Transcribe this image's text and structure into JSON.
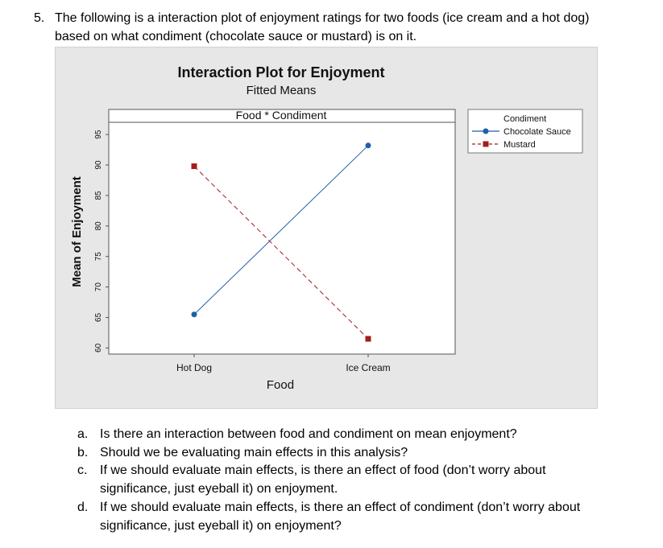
{
  "question": {
    "number": "5.",
    "text_line1": "The following is a interaction plot of enjoyment ratings for two foods (ice cream and a hot dog)",
    "text_line2": "based on what condiment (chocolate sauce or mustard) is on it."
  },
  "chart_data": {
    "type": "line",
    "title": "Interaction Plot for Enjoyment",
    "subtitle": "Fitted Means",
    "panel_label": "Food * Condiment",
    "xlabel": "Food",
    "ylabel": "Mean of Enjoyment",
    "categories": [
      "Hot Dog",
      "Ice Cream"
    ],
    "ylim": [
      59,
      97
    ],
    "yticks": [
      60,
      65,
      70,
      75,
      80,
      85,
      90,
      95
    ],
    "legend_title": "Condiment",
    "legend_position": "right",
    "series": [
      {
        "name": "Chocolate Sauce",
        "values": [
          65.5,
          93.2
        ],
        "color": "#1f5fa8",
        "marker": "circle",
        "line": "solid"
      },
      {
        "name": "Mustard",
        "values": [
          89.8,
          61.5
        ],
        "color": "#a51c1c",
        "marker": "square",
        "line": "dashed"
      }
    ]
  },
  "subquestions": [
    {
      "letter": "a.",
      "lines": [
        "Is there an interaction between food and condiment on mean enjoyment?"
      ]
    },
    {
      "letter": "b.",
      "lines": [
        "Should we be evaluating main effects in this analysis?"
      ]
    },
    {
      "letter": "c.",
      "lines": [
        "If we should evaluate main effects, is there an effect of food (don’t worry about",
        "significance, just eyeball it) on enjoyment."
      ]
    },
    {
      "letter": "d.",
      "lines": [
        "If we should evaluate main effects, is there an effect of condiment (don’t worry about",
        "significance, just eyeball it) on enjoyment?"
      ]
    }
  ]
}
